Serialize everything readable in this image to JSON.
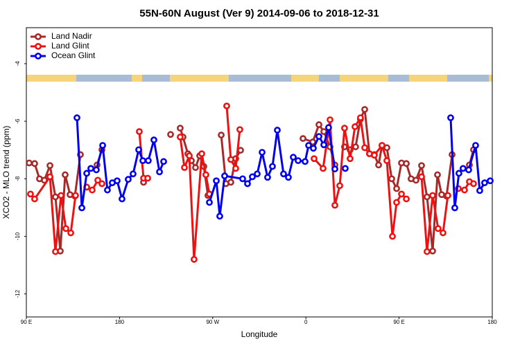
{
  "chart_data": {
    "type": "line",
    "title": "55N-60N August (Ver 9)   2014-09-06 to 2018-12-31",
    "x_label": "Longitude",
    "y_label": "XCO2 - MLO trend (ppm)",
    "xlim": [
      90,
      540
    ],
    "xticks": [
      {
        "value": 90,
        "label": "90 E"
      },
      180,
      {
        "value": 270,
        "label": "90 W"
      },
      {
        "value": 360,
        "label": "0"
      },
      {
        "value": 450,
        "label": "90 E"
      },
      {
        "value": 540,
        "label": "180"
      }
    ],
    "ylim": [
      -12.8,
      -2.75
    ],
    "yticks": [
      -12,
      -10,
      -8,
      -6,
      -4
    ],
    "legend": "top-left",
    "series": [
      {
        "name": "Land Nadir",
        "color": "#a52a2a",
        "x": [
          92.7,
          98.0,
          102.7,
          107.4,
          112.8,
          118.1,
          122.8,
          127.5,
          132.2,
          136.9,
          142.2,
          null,
          158.3,
          163.0,
          null,
          203.2,
          null,
          229.3,
          null,
          238.6,
          241.3,
          246.0,
          249.4,
          253.4,
          257.4,
          261.4,
          265.4,
          null,
          278.2,
          282.8,
          287.5,
          292.2,
          296.9,
          null,
          357.2,
          366.6,
          372.6,
          377.3,
          383.3,
          388.0,
          null,
          397.3,
          402.7,
          408.0,
          412.7,
          416.8,
          421.4,
          426.1,
          430.2,
          433.5,
          438.2,
          442.9,
          447.6,
          452.3,
          457.0,
          461.6,
          466.3,
          471.7,
          477.0,
          482.4,
          487.1,
          491.1,
          495.8,
          501.2,
          null,
          517.9,
          521.9
        ],
        "values": [
          -7.45,
          -7.47,
          -8.0,
          -8.05,
          -7.54,
          -8.63,
          -10.51,
          -7.86,
          -8.55,
          -8.6,
          -7.16,
          null,
          -7.52,
          -6.99,
          null,
          -8.12,
          null,
          -6.46,
          null,
          -6.24,
          -6.55,
          -7.13,
          -7.37,
          -7.61,
          -7.2,
          -7.57,
          -8.58,
          null,
          -6.48,
          -8.17,
          -8.12,
          -7.3,
          -7.01,
          null,
          -6.6,
          -6.72,
          -6.12,
          -6.36,
          -6.89,
          -7.52,
          null,
          -6.89,
          -6.99,
          -6.89,
          -5.93,
          -5.59,
          -7.13,
          -7.16,
          -7.52,
          -6.84,
          -6.92,
          -8.0,
          -8.34,
          -7.45,
          -7.47,
          -8.0,
          -8.05,
          -7.54,
          -8.63,
          -10.51,
          -7.86,
          -8.55,
          -8.6,
          -7.16,
          null,
          -7.52,
          -6.99
        ]
      },
      {
        "name": "Land Glint",
        "color": "#ee1111",
        "x": [
          94.0,
          98.0,
          112.8,
          118.1,
          123.5,
          128.2,
          132.9,
          137.5,
          null,
          148.3,
          153.6,
          159.0,
          163.0,
          null,
          199.1,
          203.2,
          207.2,
          null,
          238.6,
          242.7,
          247.4,
          252.0,
          259.4,
          263.4,
          266.8,
          null,
          283.5,
          287.5,
          292.2,
          296.2,
          null,
          367.9,
          376.6,
          383.3,
          388.0,
          392.7,
          397.3,
          402.7,
          407.4,
          412.7,
          416.8,
          421.4,
          426.1,
          433.5,
          438.2,
          443.6,
          447.6,
          452.3,
          457.0,
          null,
          471.7,
          477.0,
          482.4,
          487.7,
          492.4,
          497.1,
          null,
          507.2,
          513.2,
          517.9,
          521.9
        ],
        "values": [
          -8.53,
          -8.7,
          -7.93,
          -10.53,
          -8.58,
          -9.73,
          -9.88,
          -8.58,
          null,
          -8.29,
          -8.39,
          -8.05,
          -8.17,
          null,
          -6.36,
          -7.98,
          -7.98,
          null,
          -6.55,
          -7.61,
          -7.2,
          -10.8,
          -7.13,
          -7.86,
          -8.53,
          null,
          -5.47,
          -7.33,
          -7.64,
          -6.29,
          null,
          -7.3,
          -7.64,
          -5.95,
          -8.92,
          -8.24,
          -6.24,
          -7.3,
          -6.19,
          -5.88,
          -6.92,
          -7.13,
          -7.18,
          -6.84,
          -7.37,
          -10.0,
          -8.82,
          -8.53,
          -8.7,
          null,
          -7.93,
          -10.53,
          -8.58,
          -9.73,
          -9.88,
          -8.58,
          null,
          -8.34,
          -8.39,
          -8.1,
          -8.17
        ]
      },
      {
        "name": "Ocean Glint",
        "color": "#0000ee",
        "x": [
          138.9,
          143.6,
          148.3,
          152.3,
          157.6,
          163.7,
          168.3,
          173.0,
          177.7,
          182.4,
          188.4,
          193.1,
          198.5,
          202.5,
          207.8,
          213.2,
          218.6,
          222.6,
          null,
          266.8,
          273.5,
          276.8,
          281.5,
          298.9,
          303.6,
          308.3,
          313.0,
          317.7,
          323.0,
          327.7,
          332.4,
          338.4,
          343.1,
          347.8,
          352.5,
          359.2,
          362.6,
          367.2,
          372.6,
          377.3,
          381.9,
          388.0,
          null,
          398.0,
          null,
          499.8,
          503.8,
          507.8,
          511.8,
          517.2,
          523.9,
          527.9,
          532.6,
          538.0
        ],
        "values": [
          -5.88,
          -9.01,
          -7.81,
          -7.64,
          -7.69,
          -6.84,
          -8.39,
          -8.14,
          -8.07,
          -8.7,
          -8.02,
          -7.83,
          -6.99,
          -7.37,
          -7.37,
          -6.65,
          -7.76,
          -7.4,
          null,
          -8.82,
          -8.07,
          -9.3,
          -7.9,
          -8.0,
          -8.17,
          -7.93,
          -7.83,
          -7.08,
          -7.95,
          -7.57,
          -6.31,
          -7.83,
          -7.95,
          -7.25,
          -7.37,
          -7.4,
          -6.84,
          -6.94,
          -6.53,
          -6.82,
          -6.22,
          -7.66,
          null,
          -7.64,
          null,
          -5.88,
          -9.01,
          -7.81,
          -7.64,
          -7.69,
          -6.84,
          -8.41,
          -8.14,
          -8.07
        ]
      }
    ]
  }
}
